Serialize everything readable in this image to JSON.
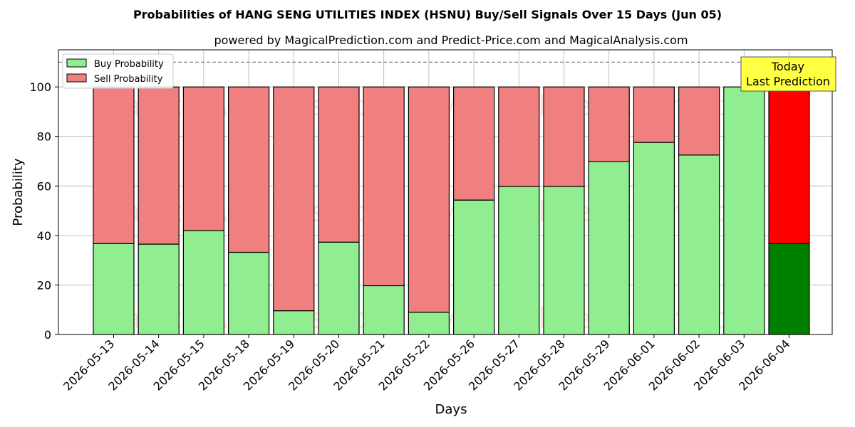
{
  "chart_data": {
    "type": "bar",
    "stacked": true,
    "title": "Probabilities of HANG SENG UTILITIES INDEX (HSNU) Buy/Sell Signals Over 15 Days (Jun 05)",
    "subtitle": "powered by MagicalPrediction.com and Predict-Price.com and MagicalAnalysis.com",
    "xlabel": "Days",
    "ylabel": "Probability",
    "ylim": [
      0,
      115
    ],
    "yticks": [
      0,
      20,
      40,
      60,
      80,
      100
    ],
    "reference_line": 110,
    "grid": true,
    "legend_placement": "top-left",
    "categories": [
      "2026-05-13",
      "2026-05-14",
      "2026-05-15",
      "2026-05-18",
      "2026-05-19",
      "2026-05-20",
      "2026-05-21",
      "2026-05-22",
      "2026-05-26",
      "2026-05-27",
      "2026-05-28",
      "2026-05-29",
      "2026-06-01",
      "2026-06-02",
      "2026-06-03",
      "2026-06-04"
    ],
    "series": [
      {
        "name": "Buy Probability",
        "color": "#90ee90",
        "values": [
          36.7,
          36.5,
          42.0,
          33.2,
          9.6,
          37.3,
          19.7,
          9.0,
          54.3,
          59.8,
          59.8,
          69.9,
          77.6,
          72.5,
          100.0,
          36.7
        ]
      },
      {
        "name": "Sell Probability",
        "color": "#f08080",
        "values": [
          63.3,
          63.5,
          58.0,
          66.8,
          90.4,
          62.7,
          80.3,
          91.0,
          45.7,
          40.2,
          40.2,
          30.1,
          22.4,
          27.5,
          0.0,
          63.3
        ]
      }
    ],
    "highlight": {
      "index": 15,
      "buy_color": "#008000",
      "sell_color": "#ff0000"
    },
    "annotation": [
      "Today",
      "Last Prediction"
    ],
    "watermarks": [
      "MagicalAnalysis.com",
      "MagicalPrediction.com"
    ]
  }
}
